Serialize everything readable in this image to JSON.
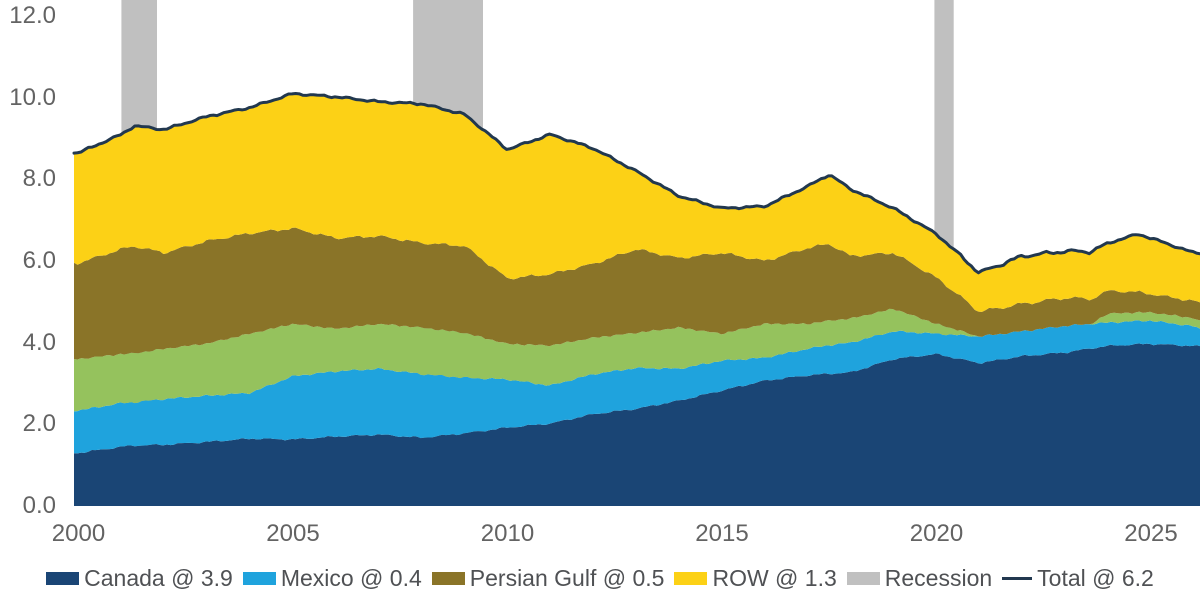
{
  "chart": {
    "y_axis": {
      "ticks": [
        {
          "v": 0,
          "label": "0.0"
        },
        {
          "v": 2,
          "label": "2.0"
        },
        {
          "v": 4,
          "label": "4.0"
        },
        {
          "v": 6,
          "label": "6.0"
        },
        {
          "v": 8,
          "label": "8.0"
        },
        {
          "v": 10,
          "label": "10.0"
        },
        {
          "v": 12,
          "label": "12.0"
        }
      ]
    },
    "x_axis": {
      "ticks": [
        {
          "v": 2000,
          "label": "2000"
        },
        {
          "v": 2005,
          "label": "2005"
        },
        {
          "v": 2010,
          "label": "2010"
        },
        {
          "v": 2015,
          "label": "2015"
        },
        {
          "v": 2020,
          "label": "2020"
        },
        {
          "v": 2025,
          "label": "2025"
        }
      ]
    },
    "legend": {
      "items": [
        {
          "label": "Canada @ 3.9",
          "swatch": "square",
          "color": "#1a4575"
        },
        {
          "label": "Mexico @ 0.4",
          "swatch": "square",
          "color": "#1fa3dd"
        },
        {
          "label": "Persian Gulf @ 0.5",
          "swatch": "square",
          "color": "#8a7428"
        },
        {
          "label": "ROW @ 1.3",
          "swatch": "square",
          "color": "#fcd116"
        },
        {
          "label": "Recession",
          "swatch": "square",
          "color": "#c0c0c0"
        },
        {
          "label": "Total @ 6.2",
          "swatch": "line",
          "color": "#22384f"
        }
      ]
    }
  },
  "chart_data": {
    "type": "area",
    "stacked": true,
    "title": "",
    "xlabel": "",
    "ylabel": "",
    "xlim": [
      1999.9,
      2026.14
    ],
    "ylim": [
      0,
      12.4
    ],
    "grid": false,
    "legend_position": "bottom",
    "x": [
      2000,
      2001,
      2001.3,
      2002,
      2003,
      2004,
      2005,
      2006,
      2007,
      2008,
      2009,
      2010,
      2011,
      2012,
      2013,
      2014,
      2015,
      2016,
      2017,
      2017.5,
      2018,
      2019,
      2020,
      2021,
      2022,
      2023,
      2023.6,
      2024,
      2024.7,
      2025,
      2026,
      2026.2
    ],
    "series": [
      {
        "name": "Canada",
        "legend_label": "Canada @ 3.9",
        "color": "#1a4575",
        "values": [
          1.3,
          1.45,
          1.48,
          1.5,
          1.57,
          1.65,
          1.63,
          1.7,
          1.75,
          1.67,
          1.78,
          1.92,
          2.02,
          2.25,
          2.38,
          2.58,
          2.83,
          3.07,
          3.2,
          3.24,
          3.27,
          3.6,
          3.72,
          3.5,
          3.67,
          3.76,
          3.86,
          3.92,
          3.96,
          3.97,
          3.92,
          3.9
        ]
      },
      {
        "name": "Mexico",
        "legend_label": "Mexico @ 0.4",
        "color": "#1fa3dd",
        "values": [
          1.04,
          1.07,
          1.06,
          1.12,
          1.13,
          1.12,
          1.55,
          1.6,
          1.61,
          1.56,
          1.36,
          1.18,
          0.93,
          0.98,
          1.0,
          0.78,
          0.73,
          0.56,
          0.65,
          0.7,
          0.73,
          0.68,
          0.5,
          0.65,
          0.61,
          0.65,
          0.6,
          0.57,
          0.57,
          0.57,
          0.48,
          0.4
        ]
      },
      {
        "name": "unlabeled-green-band",
        "legend_label": null,
        "color": "#95c25d",
        "values": [
          1.26,
          1.2,
          1.2,
          1.23,
          1.28,
          1.45,
          1.28,
          1.04,
          1.1,
          1.14,
          1.1,
          0.87,
          0.98,
          0.89,
          0.86,
          1.01,
          0.66,
          0.83,
          0.61,
          0.6,
          0.59,
          0.55,
          0.24,
          0,
          0,
          0,
          0,
          0.22,
          0.21,
          0.2,
          0.2,
          0.2
        ]
      },
      {
        "name": "Persian Gulf",
        "legend_label": "Persian Gulf @ 0.5",
        "color": "#8a7428",
        "values": [
          2.35,
          2.57,
          2.62,
          2.35,
          2.51,
          2.46,
          2.34,
          2.22,
          2.15,
          2.07,
          2.13,
          1.6,
          1.75,
          1.81,
          2.05,
          1.7,
          1.98,
          1.54,
          1.86,
          1.88,
          1.53,
          1.37,
          1.13,
          0.61,
          0.67,
          0.69,
          0.61,
          0.56,
          0.5,
          0.45,
          0.42,
          0.45
        ]
      },
      {
        "name": "ROW",
        "legend_label": "ROW @ 1.3",
        "color": "#fcd116",
        "values": [
          2.7,
          2.81,
          2.95,
          3.02,
          3.05,
          3.08,
          3.3,
          3.46,
          3.29,
          3.41,
          3.22,
          3.16,
          3.42,
          2.83,
          1.91,
          1.52,
          1.09,
          1.34,
          1.51,
          1.7,
          1.64,
          1.09,
          1.07,
          0.95,
          1.17,
          1.14,
          1.16,
          1.17,
          1.42,
          1.37,
          1.18,
          1.25
        ]
      }
    ],
    "total_line": {
      "name": "Total",
      "legend_label": "Total @ 6.2",
      "color": "#22384f",
      "note": "sum of stacked series"
    },
    "recession_bands": {
      "color": "#c0c0c0",
      "spans": [
        [
          2001.0,
          2001.83
        ],
        [
          2007.8,
          2009.43
        ],
        [
          2019.95,
          2020.4
        ]
      ]
    }
  }
}
